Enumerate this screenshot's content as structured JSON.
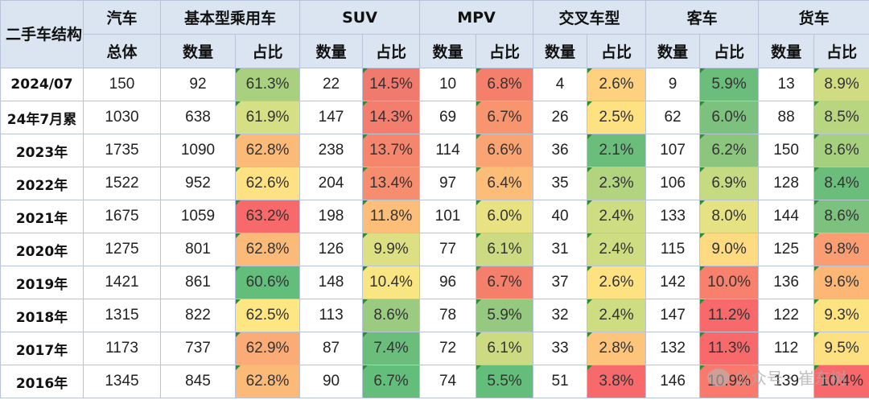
{
  "header": {
    "corner": "二手车结构",
    "groups": [
      "汽车",
      "基本型乘用车",
      "SUV",
      "MPV",
      "交叉车型",
      "客车",
      "货车"
    ],
    "sub": [
      "总体",
      "数量",
      "占比",
      "数量",
      "占比",
      "数量",
      "占比",
      "数量",
      "占比",
      "数量",
      "占比",
      "数量",
      "占比"
    ]
  },
  "rows": [
    {
      "label": "2024/07",
      "cells": [
        "150",
        "92",
        "61.3%",
        "22",
        "14.5%",
        "10",
        "6.8%",
        "4",
        "2.6%",
        "9",
        "5.9%",
        "13",
        "8.9%"
      ]
    },
    {
      "label": "24年7月累",
      "cells": [
        "1030",
        "638",
        "61.9%",
        "147",
        "14.3%",
        "69",
        "6.7%",
        "26",
        "2.5%",
        "62",
        "6.0%",
        "88",
        "8.5%"
      ]
    },
    {
      "label": "2023年",
      "cells": [
        "1735",
        "1090",
        "62.8%",
        "238",
        "13.7%",
        "114",
        "6.6%",
        "36",
        "2.1%",
        "107",
        "6.2%",
        "150",
        "8.6%"
      ]
    },
    {
      "label": "2022年",
      "cells": [
        "1522",
        "952",
        "62.6%",
        "204",
        "13.4%",
        "97",
        "6.4%",
        "35",
        "2.3%",
        "106",
        "6.9%",
        "128",
        "8.4%"
      ]
    },
    {
      "label": "2021年",
      "cells": [
        "1675",
        "1059",
        "63.2%",
        "198",
        "11.8%",
        "101",
        "6.0%",
        "40",
        "2.4%",
        "133",
        "8.0%",
        "144",
        "8.6%"
      ]
    },
    {
      "label": "2020年",
      "cells": [
        "1275",
        "801",
        "62.8%",
        "126",
        "9.9%",
        "77",
        "6.1%",
        "31",
        "2.4%",
        "115",
        "9.0%",
        "125",
        "9.8%"
      ]
    },
    {
      "label": "2019年",
      "cells": [
        "1421",
        "861",
        "60.6%",
        "148",
        "10.4%",
        "96",
        "6.7%",
        "37",
        "2.6%",
        "142",
        "10.0%",
        "136",
        "9.6%"
      ]
    },
    {
      "label": "2018年",
      "cells": [
        "1315",
        "822",
        "62.5%",
        "113",
        "8.6%",
        "78",
        "5.9%",
        "32",
        "2.4%",
        "147",
        "11.2%",
        "122",
        "9.3%"
      ]
    },
    {
      "label": "2017年",
      "cells": [
        "1173",
        "737",
        "62.9%",
        "87",
        "7.4%",
        "72",
        "6.1%",
        "33",
        "2.8%",
        "132",
        "11.3%",
        "112",
        "9.5%"
      ]
    },
    {
      "label": "2016年",
      "cells": [
        "1345",
        "845",
        "62.8%",
        "90",
        "6.7%",
        "74",
        "5.5%",
        "51",
        "3.8%",
        "146",
        "10.9%",
        "139",
        "10.4%"
      ]
    }
  ],
  "heat_colors": [
    [
      null,
      null,
      "#a8d07e",
      null,
      "#f07a6d",
      null,
      "#f4806c",
      null,
      "#fdd17f",
      null,
      "#6bbd7c",
      null,
      "#cfdc82"
    ],
    [
      null,
      null,
      "#d5df83",
      null,
      "#f37e6d",
      null,
      "#f8956f",
      null,
      "#fee282",
      null,
      "#7cc17d",
      null,
      "#b8d67f"
    ],
    [
      null,
      null,
      "#fcba79",
      null,
      "#f6856e",
      null,
      "#faa473",
      null,
      "#6bbd7c",
      null,
      "#8cc67e",
      null,
      "#a6d07e"
    ],
    [
      null,
      null,
      "#fde182",
      null,
      "#f78d6f",
      null,
      "#fcbd79",
      null,
      "#b3d47f",
      null,
      "#c5da81",
      null,
      "#6bbd7c"
    ],
    [
      null,
      null,
      "#f8696b",
      null,
      "#fcbe79",
      null,
      "#e9e283",
      null,
      "#cfdd82",
      null,
      "#e5e283",
      null,
      "#7cc17d"
    ],
    [
      null,
      null,
      "#fcba79",
      null,
      "#dde082",
      null,
      "#ccdb81",
      null,
      "#cfdd82",
      null,
      "#feda80",
      null,
      "#fa9d72"
    ],
    [
      null,
      null,
      "#63be7b",
      null,
      "#f9e683",
      null,
      "#f4806c",
      null,
      "#fee282",
      null,
      "#f8816d",
      null,
      "#fcb777"
    ],
    [
      null,
      null,
      "#fee683",
      null,
      "#9bcb80",
      null,
      "#95c97f",
      null,
      "#cfdd82",
      null,
      "#f8696b",
      null,
      "#fee382"
    ],
    [
      null,
      null,
      "#fbab76",
      null,
      "#6bbd7c",
      null,
      "#ccdb81",
      null,
      "#fdc47b",
      null,
      "#f8696b",
      null,
      "#fde081"
    ],
    [
      null,
      null,
      "#fcba79",
      null,
      "#63be7b",
      null,
      "#63be7b",
      null,
      "#f8696b",
      null,
      "#f97a6d",
      null,
      "#f8696b"
    ]
  ],
  "watermark": "公众号 · 崔东树"
}
